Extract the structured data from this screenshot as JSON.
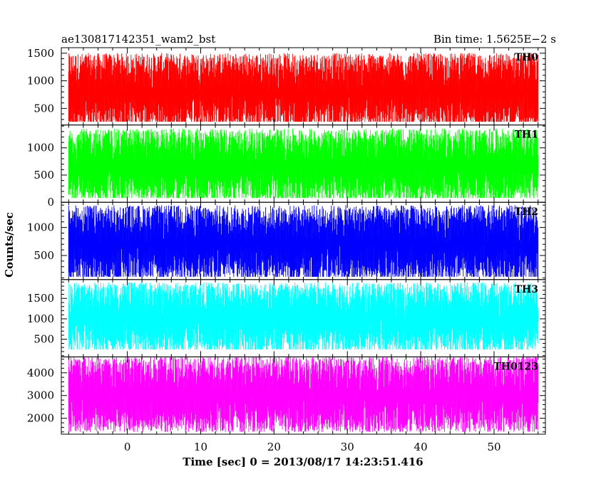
{
  "title_left": "ae130817142351_wam2_bst",
  "title_right": "Bin time: 1.5625E−2 s",
  "chart_data": {
    "type": "line",
    "xlabel": "Time [sec] 0 = 2013/08/17 14:23:51.416",
    "ylabel": "Counts/sec",
    "xlim": [
      -9,
      57
    ],
    "x_data_range": [
      -8,
      56
    ],
    "x_ticks": [
      0,
      10,
      20,
      30,
      40,
      50
    ],
    "x_tick_labels": [
      "0",
      "10",
      "20",
      "30",
      "40",
      "50"
    ],
    "grid": false,
    "panels": [
      {
        "name": "TH0",
        "color": "#ff0000",
        "ylim": [
          200,
          1600
        ],
        "y_ticks": [
          500,
          1000,
          1500
        ],
        "y_tick_labels": [
          "500",
          "1000",
          "1500"
        ],
        "baseline": 800,
        "low": 260,
        "high": 1600
      },
      {
        "name": "TH1",
        "color": "#00ff00",
        "ylim": [
          0,
          1420
        ],
        "y_ticks": [
          0,
          500,
          1000
        ],
        "y_tick_labels": [
          "0",
          "500",
          "1000"
        ],
        "baseline": 650,
        "low": 80,
        "high": 1420
      },
      {
        "name": "TH2",
        "color": "#0000ff",
        "ylim": [
          70,
          1450
        ],
        "y_ticks": [
          500,
          1000
        ],
        "y_tick_labels": [
          "500",
          "1000"
        ],
        "baseline": 700,
        "low": 120,
        "high": 1450
      },
      {
        "name": "TH3",
        "color": "#00ffff",
        "ylim": [
          70,
          1960
        ],
        "y_ticks": [
          500,
          1000,
          1500
        ],
        "y_tick_labels": [
          "500",
          "1000",
          "1500"
        ],
        "baseline": 1000,
        "low": 250,
        "high": 1960
      },
      {
        "name": "TH0123",
        "color": "#ff00ff",
        "ylim": [
          1300,
          4700
        ],
        "y_ticks": [
          2000,
          3000,
          4000
        ],
        "y_tick_labels": [
          "2000",
          "3000",
          "4000"
        ],
        "baseline": 3000,
        "low": 1400,
        "high": 4700
      }
    ]
  }
}
